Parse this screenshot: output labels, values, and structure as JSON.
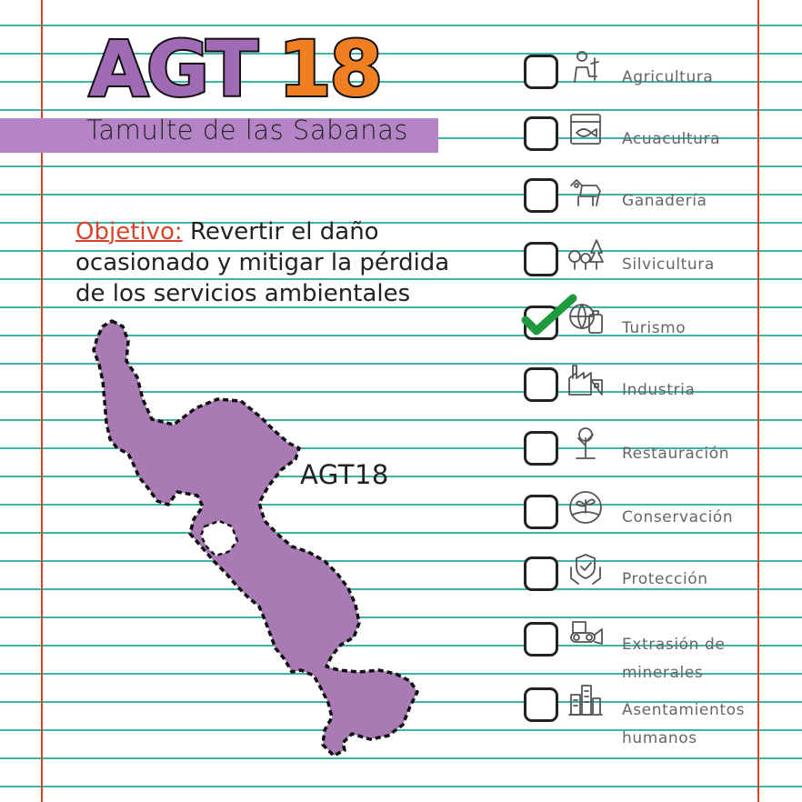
{
  "title": {
    "part1": "AGT",
    "part2": "18"
  },
  "subtitle": "Tamulte de las Sabanas",
  "objective": {
    "label": "Objetivo:",
    "text": "Revertir el daño ocasionado y mitigar la pérdida de los servicios ambientales"
  },
  "map": {
    "label": "AGT18"
  },
  "colors": {
    "purple": "#a06ab4",
    "orange": "#f07f22",
    "lines": "#3fb3a6",
    "margin": "#d9442e",
    "check": "#1e9a3c"
  },
  "checklist": [
    {
      "label": "Agricultura",
      "icon": "farmer-icon",
      "checked": false
    },
    {
      "label": "Acuacultura",
      "icon": "fish-tank-icon",
      "checked": false
    },
    {
      "label": "Ganadería",
      "icon": "cow-icon",
      "checked": false
    },
    {
      "label": "Silvicultura",
      "icon": "trees-icon",
      "checked": false
    },
    {
      "label": "Turismo",
      "icon": "globe-luggage-icon",
      "checked": true
    },
    {
      "label": "Industria",
      "icon": "factory-icon",
      "checked": false
    },
    {
      "label": "Restauración",
      "icon": "tree-restoration-icon",
      "checked": false
    },
    {
      "label": "Conservación",
      "icon": "plant-hand-icon",
      "checked": false
    },
    {
      "label": "Protección",
      "icon": "shield-hands-icon",
      "checked": false
    },
    {
      "label": "Extrasión de minerales",
      "label_line1": "Extrasión de",
      "label_line2": "minerales",
      "icon": "bulldozer-icon",
      "checked": false
    },
    {
      "label": "Asentamientos humanos",
      "label_line1": "Asentamientos",
      "label_line2": "humanos",
      "icon": "city-icon",
      "checked": false
    }
  ]
}
